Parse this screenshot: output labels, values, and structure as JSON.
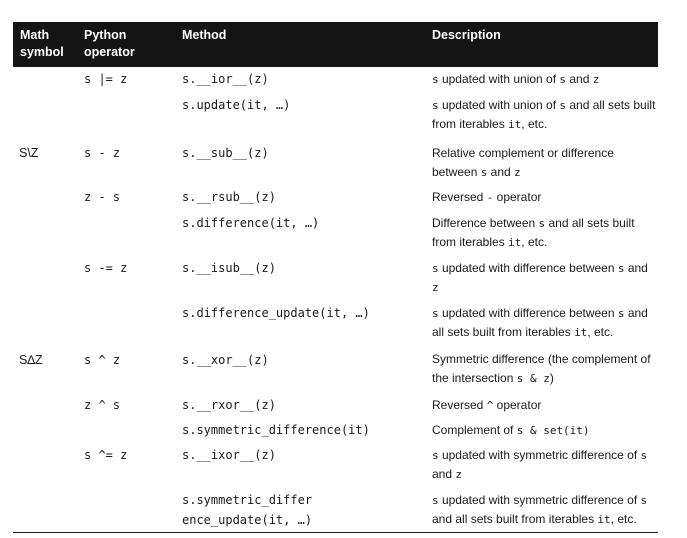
{
  "headers": {
    "math": "Math\nsymbol",
    "python": "Python\noperator",
    "method": "Method",
    "description": "Description"
  },
  "rows": [
    {
      "math": "",
      "op": "s |= z",
      "method": "s.__ior__(z)",
      "desc": [
        "s",
        " updated with union of ",
        "s",
        " and ",
        "z",
        ""
      ]
    },
    {
      "math": "",
      "op": "",
      "method": "s.update(it, …)",
      "desc": [
        "s",
        " updated with union of ",
        "s",
        " and all sets built from iterables ",
        "it",
        ", etc."
      ]
    },
    {
      "math": "S\\Z",
      "op": "s - z",
      "method": "s.__sub__(z)",
      "desc": [
        "",
        "Relative complement or difference between ",
        "s",
        " and ",
        "z",
        ""
      ]
    },
    {
      "math": "",
      "op": "z - s",
      "method": "s.__rsub__(z)",
      "desc": [
        "",
        "Reversed ",
        "-",
        " operator",
        "",
        ""
      ]
    },
    {
      "math": "",
      "op": "",
      "method": "s.difference(it, …)",
      "desc": [
        "",
        "Difference between ",
        "s",
        " and all sets built from iterables ",
        "it",
        ", etc."
      ]
    },
    {
      "math": "",
      "op": "s -= z",
      "method": "s.__isub__(z)",
      "desc": [
        "s",
        " updated with difference between ",
        "s",
        " and ",
        "z",
        ""
      ]
    },
    {
      "math": "",
      "op": "",
      "method": "s.difference_update(it, …)",
      "desc": [
        "s",
        " updated with difference between ",
        "s",
        " and all sets built from iterables ",
        "it",
        ", etc."
      ]
    },
    {
      "math": "S∆Z",
      "op": "s ^ z",
      "method": "s.__xor__(z)",
      "desc": [
        "",
        "Symmetric difference (the complement of the intersection ",
        "s & z",
        ")",
        "",
        ""
      ]
    },
    {
      "math": "",
      "op": "z ^ s",
      "method": "s.__rxor__(z)",
      "desc": [
        "",
        "Reversed ",
        "^",
        " operator",
        "",
        ""
      ]
    },
    {
      "math": "",
      "op": "",
      "method": "s.symmetric_difference(it)",
      "desc": [
        "",
        "Complement of ",
        "s & set(it)",
        "",
        "",
        ""
      ]
    },
    {
      "math": "",
      "op": "s ^= z",
      "method": "s.__ixor__(z)",
      "desc": [
        "s",
        " updated with symmetric difference of ",
        "s",
        " and ",
        "z",
        ""
      ]
    },
    {
      "math": "",
      "op": "",
      "method": "s.symmetric_differ\nence_update(it, …)",
      "desc": [
        "s",
        " updated with symmetric difference of ",
        "s",
        " and all sets built from iterables ",
        "it",
        ", etc."
      ]
    }
  ]
}
